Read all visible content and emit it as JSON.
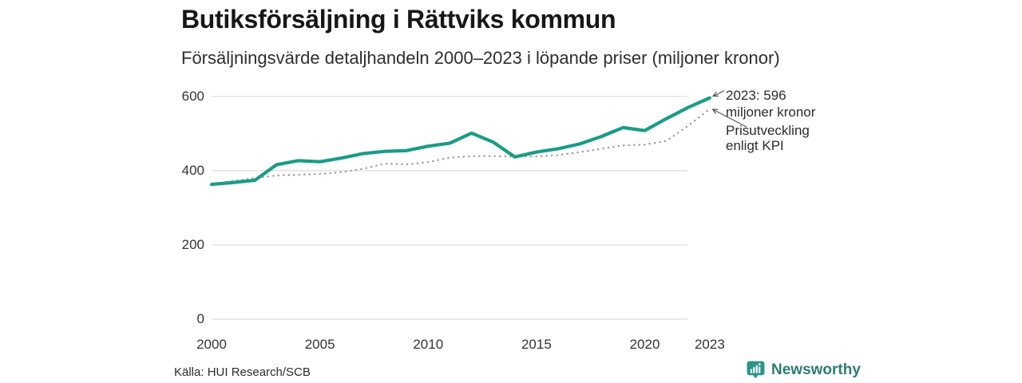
{
  "header": {
    "title": "Butiksförsäljning i Rättviks kommun",
    "subtitle": "Försäljningsvärde detaljhandeln 2000–2023 i löpande priser (miljoner kronor)"
  },
  "chart_data": {
    "type": "line",
    "title": "Butiksförsäljning i Rättviks kommun",
    "subtitle": "Försäljningsvärde detaljhandeln 2000–2023 i löpande priser (miljoner kronor)",
    "unit": "miljoner kronor",
    "x": [
      2000,
      2001,
      2002,
      2003,
      2004,
      2005,
      2006,
      2007,
      2008,
      2009,
      2010,
      2011,
      2012,
      2013,
      2014,
      2015,
      2016,
      2017,
      2018,
      2019,
      2020,
      2021,
      2022,
      2023
    ],
    "series": [
      {
        "name": "Försäljningsvärde detaljhandeln i löpande priser",
        "color": "#1a9c87",
        "style": "solid",
        "values": [
          363,
          368,
          374,
          416,
          427,
          424,
          434,
          446,
          452,
          454,
          466,
          474,
          501,
          477,
          437,
          450,
          459,
          472,
          492,
          516,
          508,
          540,
          570,
          596
        ]
      },
      {
        "name": "Prisutveckling enligt KPI",
        "color": "#999999",
        "style": "dotted",
        "values": [
          363,
          372,
          380,
          387,
          389,
          391,
          396,
          405,
          419,
          417,
          423,
          435,
          439,
          439,
          438,
          438,
          442,
          450,
          459,
          468,
          470,
          480,
          521,
          566
        ]
      }
    ],
    "ylim": [
      0,
      600
    ],
    "yticks": [
      0,
      200,
      400,
      600
    ],
    "xticks": [
      2000,
      2005,
      2010,
      2015,
      2020,
      2023
    ],
    "grid": "horizontal",
    "legend": "none",
    "annotations": [
      {
        "line1": "2023: 596",
        "line2": "miljoner kronor",
        "target": "solid-series-end"
      },
      {
        "line1": "Prisutveckling",
        "line2": "enligt KPI",
        "target": "dotted-series-end"
      }
    ]
  },
  "footer": {
    "source": "Källa: HUI Research/SCB",
    "brand": "Newsworthy"
  },
  "colors": {
    "accent": "#1a9c87",
    "kpi_line": "#999999",
    "gridline": "#dcdcdc",
    "brand_text": "#2d7c73",
    "brand_icon": "#2b9488"
  }
}
